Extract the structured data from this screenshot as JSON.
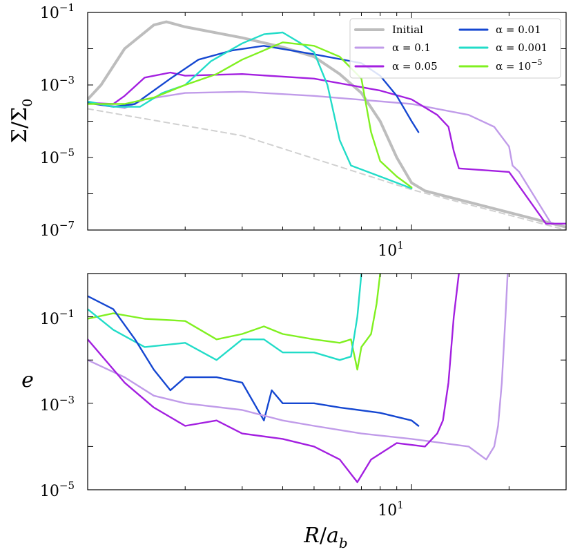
{
  "chart_data": [
    {
      "type": "line",
      "name": "surface-density",
      "xscale": "log",
      "yscale": "log",
      "xlim": [
        1.0,
        30.0
      ],
      "ylim": [
        1e-07,
        0.1
      ],
      "xlabel": "",
      "ylabel": "Σ/Σ₀",
      "ylabel_parts": {
        "num": "Σ",
        "slash": "/",
        "den": "Σ",
        "sub": "0"
      },
      "x_tick_labels": [
        {
          "value": 10,
          "base": "10",
          "exp": "1"
        }
      ],
      "y_tick_labels": [
        {
          "value": 0.1,
          "base": "10",
          "exp": "−1"
        },
        {
          "value": 0.001,
          "base": "10",
          "exp": "−3"
        },
        {
          "value": 1e-05,
          "base": "10",
          "exp": "−5"
        },
        {
          "value": 1e-07,
          "base": "10",
          "exp": "−7"
        }
      ],
      "legend": {
        "location": "top-right",
        "entries": [
          {
            "key": "initial",
            "text": "Initial"
          },
          {
            "key": "a01",
            "text": "α = 0.1"
          },
          {
            "key": "a005",
            "text": "α = 0.05"
          },
          {
            "key": "a001",
            "text": "α = 0.01"
          },
          {
            "key": "a0001",
            "text": "α = 0.001"
          },
          {
            "key": "a1e5",
            "text": "α = 10⁻⁵",
            "text_base": "α = 10",
            "text_exp": "−5"
          }
        ]
      },
      "series": [
        {
          "key": "reference",
          "name": "reference power law",
          "color": "#d0d0d0",
          "dashed": true,
          "points": [
            [
              1.0,
              0.00022
            ],
            [
              3.0,
              4e-05
            ],
            [
              10.0,
              1.3e-06
            ],
            [
              30.0,
              1e-07
            ]
          ]
        },
        {
          "key": "initial",
          "name": "Initial",
          "color": "#bdbdbd",
          "dashed": false,
          "points": [
            [
              1.0,
              0.0004
            ],
            [
              1.1,
              0.001
            ],
            [
              1.3,
              0.01
            ],
            [
              1.6,
              0.045
            ],
            [
              1.75,
              0.055
            ],
            [
              2.0,
              0.04
            ],
            [
              3.0,
              0.02
            ],
            [
              4.0,
              0.011
            ],
            [
              5.0,
              0.006
            ],
            [
              6.0,
              0.002
            ],
            [
              7.0,
              0.0006
            ],
            [
              8.0,
              0.0001
            ],
            [
              9.0,
              1e-05
            ],
            [
              10.0,
              2e-06
            ],
            [
              11.0,
              1.2e-06
            ],
            [
              30.0,
              1.2e-07
            ]
          ]
        },
        {
          "key": "a01",
          "name": "α = 0.1",
          "color": "#c09be9",
          "dashed": false,
          "points": [
            [
              1.0,
              0.00035
            ],
            [
              1.3,
              0.00023
            ],
            [
              1.5,
              0.0004
            ],
            [
              2.0,
              0.0006
            ],
            [
              3.0,
              0.00065
            ],
            [
              5.0,
              0.0005
            ],
            [
              10.0,
              0.0003
            ],
            [
              15.0,
              0.00015
            ],
            [
              18.0,
              7e-05
            ],
            [
              20.0,
              2e-05
            ],
            [
              20.5,
              6e-06
            ],
            [
              21.5,
              4e-06
            ],
            [
              27.0,
              1.5e-07
            ],
            [
              30.0,
              1.5e-07
            ]
          ]
        },
        {
          "key": "a005",
          "name": "α = 0.05",
          "color": "#a31fe0",
          "dashed": false,
          "points": [
            [
              1.0,
              0.00032
            ],
            [
              1.2,
              0.0003
            ],
            [
              1.3,
              0.0005
            ],
            [
              1.5,
              0.0016
            ],
            [
              1.8,
              0.0022
            ],
            [
              2.0,
              0.0018
            ],
            [
              3.0,
              0.002
            ],
            [
              5.0,
              0.0015
            ],
            [
              8.0,
              0.0007
            ],
            [
              10.0,
              0.0004
            ],
            [
              12.0,
              0.00015
            ],
            [
              13.0,
              7e-05
            ],
            [
              13.5,
              1.5e-05
            ],
            [
              14.0,
              5e-06
            ],
            [
              20.0,
              4e-06
            ],
            [
              26.0,
              1.5e-07
            ],
            [
              30.0,
              1.5e-07
            ]
          ]
        },
        {
          "key": "a001",
          "name": "α = 0.01",
          "color": "#1547d1",
          "dashed": false,
          "points": [
            [
              1.0,
              0.00032
            ],
            [
              1.2,
              0.00025
            ],
            [
              1.4,
              0.0003
            ],
            [
              1.8,
              0.0015
            ],
            [
              2.2,
              0.005
            ],
            [
              2.8,
              0.009
            ],
            [
              3.5,
              0.012
            ],
            [
              5.0,
              0.007
            ],
            [
              7.0,
              0.004
            ],
            [
              8.0,
              0.0018
            ],
            [
              9.0,
              0.0005
            ],
            [
              10.0,
              0.0001
            ],
            [
              10.5,
              5e-05
            ]
          ]
        },
        {
          "key": "a0001",
          "name": "α = 0.001",
          "color": "#22dcc8",
          "dashed": false,
          "points": [
            [
              1.0,
              0.00035
            ],
            [
              1.2,
              0.00025
            ],
            [
              1.45,
              0.00025
            ],
            [
              1.7,
              0.0006
            ],
            [
              2.0,
              0.001
            ],
            [
              2.4,
              0.0045
            ],
            [
              3.0,
              0.014
            ],
            [
              3.5,
              0.025
            ],
            [
              4.0,
              0.028
            ],
            [
              4.5,
              0.015
            ],
            [
              5.0,
              0.008
            ],
            [
              5.5,
              0.001
            ],
            [
              6.0,
              3e-05
            ],
            [
              6.5,
              6e-06
            ],
            [
              8.0,
              3e-06
            ],
            [
              10.0,
              1.4e-06
            ]
          ]
        },
        {
          "key": "a1e5",
          "name": "α = 10⁻⁵",
          "color": "#80f020",
          "dashed": false,
          "points": [
            [
              1.0,
              0.0003
            ],
            [
              1.3,
              0.0003
            ],
            [
              1.6,
              0.00045
            ],
            [
              2.0,
              0.001
            ],
            [
              2.5,
              0.002
            ],
            [
              3.0,
              0.005
            ],
            [
              4.0,
              0.015
            ],
            [
              5.0,
              0.012
            ],
            [
              6.0,
              0.006
            ],
            [
              7.0,
              0.0015
            ],
            [
              7.5,
              5e-05
            ],
            [
              8.0,
              8e-06
            ],
            [
              9.0,
              3e-06
            ],
            [
              10.0,
              1.5e-06
            ]
          ]
        }
      ]
    },
    {
      "type": "line",
      "name": "eccentricity",
      "xscale": "log",
      "yscale": "log",
      "xlim": [
        1.0,
        30.0
      ],
      "ylim": [
        1e-05,
        1.0
      ],
      "xlabel": "R/a_b",
      "xlabel_parts": {
        "main": "R",
        "slash": "/",
        "var": "a",
        "sub": "b"
      },
      "ylabel": "e",
      "x_tick_labels": [
        {
          "value": 10,
          "base": "10",
          "exp": "1"
        }
      ],
      "y_tick_labels": [
        {
          "value": 0.1,
          "base": "10",
          "exp": "−1"
        },
        {
          "value": 0.001,
          "base": "10",
          "exp": "−3"
        },
        {
          "value": 1e-05,
          "base": "10",
          "exp": "−5"
        }
      ],
      "series": [
        {
          "key": "a1e5",
          "name": "α = 10⁻⁵",
          "color": "#80f020",
          "points": [
            [
              1.0,
              0.09
            ],
            [
              1.2,
              0.12
            ],
            [
              1.5,
              0.09
            ],
            [
              2.0,
              0.08
            ],
            [
              2.5,
              0.03
            ],
            [
              3.0,
              0.04
            ],
            [
              3.5,
              0.06
            ],
            [
              4.0,
              0.04
            ],
            [
              5.0,
              0.03
            ],
            [
              6.0,
              0.025
            ],
            [
              6.5,
              0.03
            ],
            [
              6.8,
              0.006
            ],
            [
              7.0,
              0.02
            ],
            [
              7.5,
              0.04
            ],
            [
              7.8,
              0.2
            ],
            [
              8.0,
              1.0
            ]
          ]
        },
        {
          "key": "a0001",
          "name": "α = 0.001",
          "color": "#22dcc8",
          "points": [
            [
              1.0,
              0.15
            ],
            [
              1.2,
              0.05
            ],
            [
              1.5,
              0.02
            ],
            [
              2.0,
              0.025
            ],
            [
              2.5,
              0.01
            ],
            [
              3.0,
              0.03
            ],
            [
              3.5,
              0.03
            ],
            [
              4.0,
              0.015
            ],
            [
              5.0,
              0.015
            ],
            [
              6.0,
              0.01
            ],
            [
              6.5,
              0.012
            ],
            [
              6.8,
              0.1
            ],
            [
              7.0,
              1.0
            ]
          ]
        },
        {
          "key": "a001",
          "name": "α = 0.01",
          "color": "#1547d1",
          "points": [
            [
              1.0,
              0.3
            ],
            [
              1.2,
              0.15
            ],
            [
              1.4,
              0.03
            ],
            [
              1.6,
              0.006
            ],
            [
              1.8,
              0.002
            ],
            [
              2.0,
              0.004
            ],
            [
              2.5,
              0.004
            ],
            [
              3.0,
              0.003
            ],
            [
              3.5,
              0.0004
            ],
            [
              3.7,
              0.002
            ],
            [
              4.0,
              0.001
            ],
            [
              5.0,
              0.001
            ],
            [
              6.0,
              0.0008
            ],
            [
              8.0,
              0.0006
            ],
            [
              10.0,
              0.0004
            ],
            [
              10.5,
              0.0003
            ]
          ]
        },
        {
          "key": "a01",
          "name": "α = 0.1",
          "color": "#c09be9",
          "points": [
            [
              1.0,
              0.01
            ],
            [
              1.3,
              0.004
            ],
            [
              1.6,
              0.0015
            ],
            [
              2.0,
              0.001
            ],
            [
              3.0,
              0.0007
            ],
            [
              4.0,
              0.0004
            ],
            [
              5.0,
              0.0003
            ],
            [
              7.0,
              0.0002
            ],
            [
              10.0,
              0.00015
            ],
            [
              15.0,
              0.0001
            ],
            [
              17.0,
              5e-05
            ],
            [
              18.0,
              0.0001
            ],
            [
              18.5,
              0.0003
            ],
            [
              19.0,
              0.003
            ],
            [
              19.5,
              0.1
            ],
            [
              19.8,
              1.0
            ]
          ]
        },
        {
          "key": "a005",
          "name": "α = 0.05",
          "color": "#a31fe0",
          "points": [
            [
              1.0,
              0.03
            ],
            [
              1.3,
              0.003
            ],
            [
              1.6,
              0.0008
            ],
            [
              2.0,
              0.0003
            ],
            [
              2.5,
              0.0004
            ],
            [
              3.0,
              0.0002
            ],
            [
              4.0,
              0.00015
            ],
            [
              5.0,
              0.0001
            ],
            [
              6.0,
              5e-05
            ],
            [
              6.8,
              1.5e-05
            ],
            [
              7.5,
              5e-05
            ],
            [
              9.0,
              0.00012
            ],
            [
              11.0,
              0.0001
            ],
            [
              12.0,
              0.0002
            ],
            [
              12.5,
              0.0004
            ],
            [
              13.0,
              0.003
            ],
            [
              13.5,
              0.1
            ],
            [
              14.0,
              1.0
            ]
          ]
        }
      ]
    }
  ]
}
